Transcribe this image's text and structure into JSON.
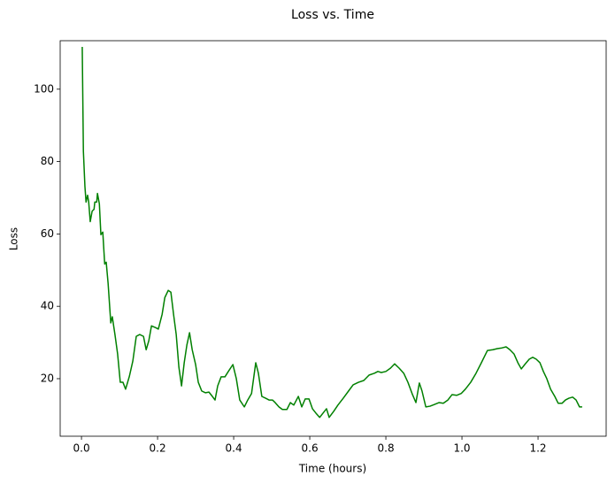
{
  "chart_data": {
    "type": "line",
    "title": "Loss vs. Time",
    "x_label": "Time (hours)",
    "y_label": "Loss",
    "xlim": [
      -0.056,
      1.379
    ],
    "ylim": [
      4.1,
      113.4
    ],
    "xticks": [
      {
        "value": 0,
        "label": "0.0"
      },
      0.2,
      0.4,
      0.6,
      0.8,
      {
        "value": 1,
        "label": "1.0"
      },
      1.2
    ],
    "yticks": [
      20,
      40,
      60,
      80,
      100
    ],
    "grid": false,
    "series": [
      {
        "name": "Loss",
        "color": "#008000",
        "x": [
          0.002,
          0.005,
          0.009,
          0.012,
          0.016,
          0.019,
          0.023,
          0.028,
          0.033,
          0.035,
          0.04,
          0.042,
          0.047,
          0.051,
          0.056,
          0.061,
          0.065,
          0.07,
          0.077,
          0.081,
          0.088,
          0.095,
          0.102,
          0.109,
          0.116,
          0.126,
          0.135,
          0.144,
          0.153,
          0.163,
          0.17,
          0.177,
          0.184,
          0.195,
          0.202,
          0.212,
          0.219,
          0.228,
          0.235,
          0.242,
          0.249,
          0.256,
          0.263,
          0.27,
          0.277,
          0.284,
          0.291,
          0.3,
          0.307,
          0.316,
          0.326,
          0.335,
          0.344,
          0.351,
          0.358,
          0.367,
          0.377,
          0.386,
          0.398,
          0.407,
          0.416,
          0.428,
          0.437,
          0.447,
          0.458,
          0.465,
          0.474,
          0.484,
          0.493,
          0.502,
          0.509,
          0.519,
          0.528,
          0.54,
          0.549,
          0.558,
          0.57,
          0.579,
          0.588,
          0.598,
          0.607,
          0.616,
          0.626,
          0.635,
          0.644,
          0.651,
          0.663,
          0.674,
          0.688,
          0.702,
          0.714,
          0.728,
          0.742,
          0.756,
          0.77,
          0.779,
          0.788,
          0.8,
          0.812,
          0.823,
          0.835,
          0.847,
          0.858,
          0.87,
          0.879,
          0.888,
          0.895,
          0.905,
          0.916,
          0.928,
          0.94,
          0.951,
          0.963,
          0.974,
          0.986,
          0.998,
          1.009,
          1.023,
          1.037,
          1.051,
          1.067,
          1.081,
          1.093,
          1.105,
          1.116,
          1.126,
          1.137,
          1.147,
          1.156,
          1.165,
          1.177,
          1.186,
          1.195,
          1.205,
          1.214,
          1.223,
          1.233,
          1.244,
          1.253,
          1.263,
          1.272,
          1.281,
          1.291,
          1.3,
          1.309,
          1.316
        ],
        "values": [
          111.7,
          82.9,
          73.2,
          68.8,
          70.7,
          68.8,
          63.4,
          66.3,
          66.8,
          68.8,
          68.8,
          71.2,
          68.3,
          59.8,
          60.5,
          51.7,
          52.2,
          46.3,
          35.4,
          37.1,
          32.2,
          26.8,
          19.0,
          19.0,
          17.1,
          20.7,
          24.9,
          31.7,
          32.2,
          31.7,
          28.0,
          30.5,
          34.6,
          34.1,
          33.7,
          37.8,
          42.4,
          44.4,
          43.9,
          37.8,
          32.2,
          23.2,
          18.0,
          24.4,
          29.3,
          32.7,
          28.0,
          23.9,
          19.0,
          16.6,
          16.1,
          16.3,
          15.1,
          14.1,
          18.0,
          20.5,
          20.5,
          22.0,
          23.9,
          20.0,
          14.1,
          12.2,
          14.1,
          15.9,
          24.4,
          21.5,
          15.1,
          14.6,
          14.1,
          14.1,
          13.4,
          12.2,
          11.5,
          11.5,
          13.4,
          12.7,
          15.1,
          12.2,
          14.4,
          14.4,
          11.7,
          10.5,
          9.3,
          10.5,
          11.7,
          9.3,
          11.0,
          12.7,
          14.6,
          16.6,
          18.3,
          19.0,
          19.5,
          21.0,
          21.5,
          22.0,
          21.7,
          22.0,
          22.9,
          24.1,
          22.9,
          21.5,
          19.0,
          15.6,
          13.4,
          18.8,
          16.6,
          12.2,
          12.4,
          12.9,
          13.4,
          13.2,
          14.1,
          15.6,
          15.4,
          15.9,
          17.1,
          19.0,
          21.5,
          24.4,
          27.8,
          28.0,
          28.3,
          28.5,
          28.8,
          28.0,
          26.8,
          24.4,
          22.7,
          23.9,
          25.4,
          25.9,
          25.4,
          24.4,
          22.0,
          20.0,
          17.1,
          15.1,
          13.2,
          13.2,
          14.1,
          14.6,
          14.9,
          14.1,
          12.2,
          12.2
        ]
      }
    ]
  }
}
